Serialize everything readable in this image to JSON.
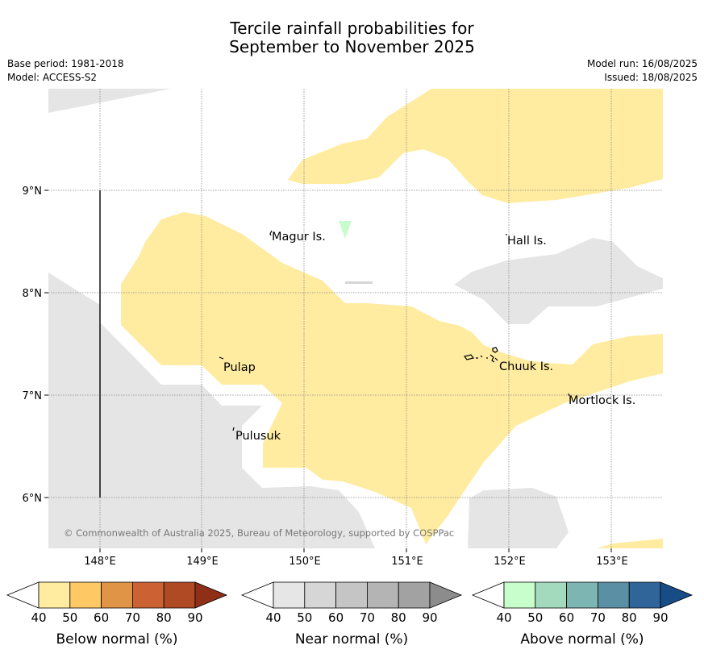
{
  "title_line1": "Tercile rainfall probabilities for",
  "title_line2": "September to November 2025",
  "meta_left": {
    "base_period": "Base period: 1981-2018",
    "model": "Model: ACCESS-S2"
  },
  "meta_right": {
    "model_run": "Model run: 16/08/2025",
    "issued": "Issued: 18/08/2025"
  },
  "map": {
    "lat_ticks": [
      "9°N",
      "8°N",
      "7°N",
      "6°N"
    ],
    "lon_ticks": [
      "148°E",
      "149°E",
      "150°E",
      "151°E",
      "152°E",
      "153°E"
    ],
    "places": [
      "Magur Is.",
      "Hall Is.",
      "Pulap",
      "Chuuk Is.",
      "Mortlock Is.",
      "Pulusuk"
    ],
    "copyright": "© Commonwealth of Australia 2025, Bureau of Meteorology, supported by COSPPac"
  },
  "legends": [
    {
      "name": "Below normal (%)",
      "ticks": [
        "40",
        "50",
        "60",
        "70",
        "80",
        "90"
      ],
      "colors": [
        "#ffffff",
        "#ffeca0",
        "#fec964",
        "#e09446",
        "#cc6233",
        "#b04a24",
        "#8f2f18"
      ]
    },
    {
      "name": "Near normal (%)",
      "ticks": [
        "40",
        "50",
        "60",
        "70",
        "80",
        "90"
      ],
      "colors": [
        "#ffffff",
        "#e6e6e6",
        "#d6d6d6",
        "#c5c5c5",
        "#b4b4b4",
        "#a2a2a2",
        "#8c8c8c"
      ]
    },
    {
      "name": "Above normal (%)",
      "ticks": [
        "40",
        "50",
        "60",
        "70",
        "80",
        "90"
      ],
      "colors": [
        "#ffffff",
        "#c8fdcc",
        "#a3d9bd",
        "#7cb5b1",
        "#5b8fa3",
        "#2f6599",
        "#174c86"
      ]
    }
  ],
  "colors": {
    "below_50": "#ffeca0",
    "near_50": "#e5e5e5",
    "above_50": "#c8fdcc",
    "grid": "#808080"
  }
}
